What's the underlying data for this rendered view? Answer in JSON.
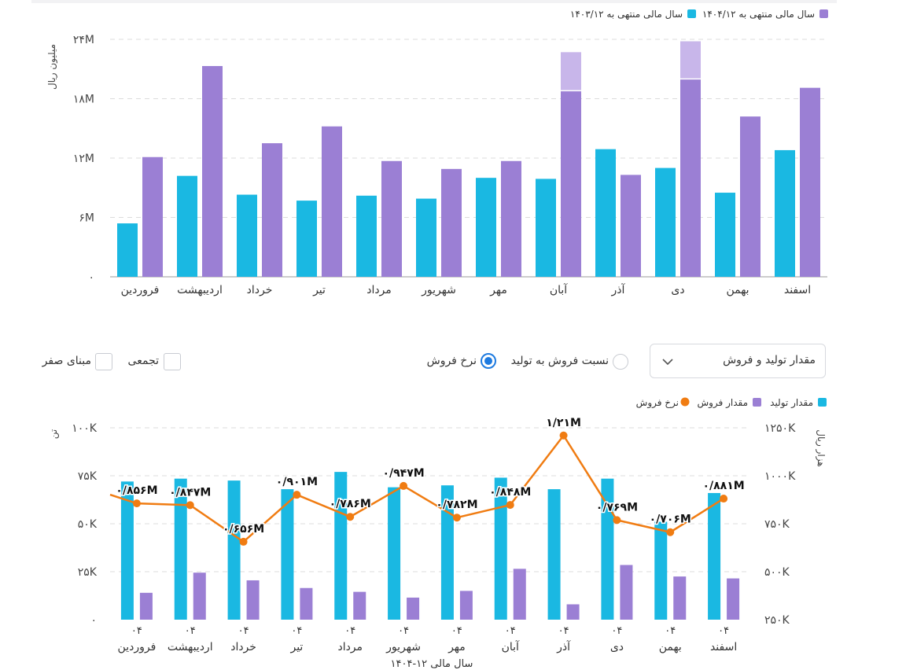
{
  "controls": {
    "dropdown_value": "مقدار تولید و فروش",
    "radio_ratio_label": "نسبت فروش به تولید",
    "radio_rate_label": "نرخ فروش",
    "selected_radio": "rate",
    "checkbox_cumulative_label": "تجمعی",
    "checkbox_zero_base_label": "مبنای صفر"
  },
  "colors": {
    "purple": "#9b7fd4",
    "purple_light": "#c8b6ea",
    "cyan": "#1ab8e2",
    "orange": "#f07c12",
    "grid": "#dcdcdc"
  },
  "chart_data": [
    {
      "type": "bar",
      "ylabel": "میلیون ریال",
      "ylim": [
        0,
        24000000
      ],
      "yticks": [
        "۰",
        "۶M",
        "۱۲M",
        "۱۸M",
        "۲۴M"
      ],
      "ytick_values": [
        0,
        6000000,
        12000000,
        18000000,
        24000000
      ],
      "categories": [
        "فروردین",
        "اردیبهشت",
        "خرداد",
        "تیر",
        "مرداد",
        "شهریور",
        "مهر",
        "آبان",
        "آذر",
        "دی",
        "بهمن",
        "اسفند"
      ],
      "legend_position": "top-right",
      "series": [
        {
          "name": "سال مالی منتهی به ۱۴۰۴/۱۲",
          "color": "purple",
          "values": [
            12100000,
            21300000,
            13500000,
            15200000,
            11700000,
            10900000,
            11700000,
            18800000,
            10300000,
            20000000,
            16200000,
            19100000
          ],
          "extra": [
            0,
            0,
            0,
            0,
            0,
            0,
            0,
            3900000,
            0,
            3800000,
            0,
            0
          ]
        },
        {
          "name": "سال مالی منتهی به ۱۴۰۳/۱۲",
          "color": "cyan",
          "values": [
            5400000,
            10200000,
            8300000,
            7700000,
            8200000,
            7900000,
            10000000,
            9900000,
            12900000,
            11000000,
            8500000,
            12800000
          ]
        }
      ]
    },
    {
      "type": "bar+line",
      "xlabel": "سال مالی ۱۲-۱۴۰۴",
      "ylabel_left": "تن",
      "ylabel_right": "هزار ریال",
      "ylim_left": [
        0,
        100000
      ],
      "ylim_right": [
        250000,
        1250000
      ],
      "yticks_left": [
        "۰",
        "۲۵K",
        "۵۰K",
        "۷۵K",
        "۱۰۰K"
      ],
      "yticks_left_values": [
        0,
        25000,
        50000,
        75000,
        100000
      ],
      "yticks_right": [
        "۲۵۰K",
        "۵۰۰K",
        "۷۵۰K",
        "۱۰۰۰K",
        "۱۲۵۰K"
      ],
      "yticks_right_values": [
        250000,
        500000,
        750000,
        1000000,
        1250000
      ],
      "year_label": "۰۴",
      "categories": [
        "فروردین",
        "اردیبهشت",
        "خرداد",
        "تیر",
        "مرداد",
        "شهریور",
        "مهر",
        "آبان",
        "آذر",
        "دی",
        "بهمن",
        "اسفند"
      ],
      "legend_position": "top-right",
      "series": [
        {
          "name": "مقدار تولید",
          "color": "cyan",
          "axis": "left",
          "values": [
            72000,
            73500,
            72500,
            68000,
            77000,
            69000,
            70000,
            74000,
            68000,
            73500,
            51000,
            66000
          ]
        },
        {
          "name": "مقدار فروش",
          "color": "purple",
          "axis": "left",
          "values": [
            14000,
            24500,
            20500,
            16500,
            14500,
            11500,
            15000,
            26500,
            8000,
            28500,
            22500,
            21500
          ]
        },
        {
          "name": "نرخ فروش",
          "color": "orange",
          "axis": "right",
          "type": "line",
          "values": [
            856000,
            847000,
            656000,
            901000,
            786000,
            947000,
            782000,
            848000,
            1210000,
            769000,
            706000,
            881000
          ],
          "labels": [
            "۰/۸۵۶M",
            "۰/۸۴۷M",
            "۰/۶۵۶M",
            "۰/۹۰۱M",
            "۰/۷۸۶M",
            "۰/۹۴۷M",
            "۰/۷۸۲M",
            "۰/۸۴۸M",
            "۱/۲۱M",
            "۰/۷۶۹M",
            "۰/۷۰۶M",
            "۰/۸۸۱M"
          ]
        }
      ]
    }
  ]
}
